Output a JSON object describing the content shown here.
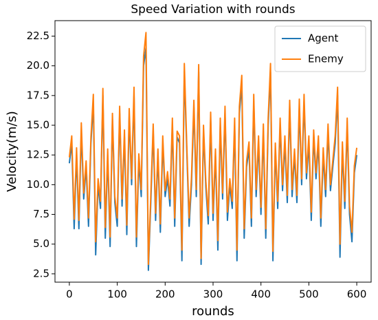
{
  "chart_data": {
    "type": "line",
    "title": "Speed Variation with rounds",
    "x_label": "rounds",
    "y_label": "Velocity(m/s)",
    "x": [
      0,
      5,
      10,
      15,
      20,
      25,
      30,
      35,
      40,
      45,
      50,
      55,
      60,
      65,
      70,
      75,
      80,
      85,
      90,
      95,
      100,
      105,
      110,
      115,
      120,
      125,
      130,
      135,
      140,
      145,
      150,
      155,
      160,
      165,
      170,
      175,
      180,
      185,
      190,
      195,
      200,
      205,
      210,
      215,
      220,
      225,
      230,
      235,
      240,
      245,
      250,
      255,
      260,
      265,
      270,
      275,
      280,
      285,
      290,
      295,
      300,
      305,
      310,
      315,
      320,
      325,
      330,
      335,
      340,
      345,
      350,
      355,
      360,
      365,
      370,
      375,
      380,
      385,
      390,
      395,
      400,
      405,
      410,
      415,
      420,
      425,
      430,
      435,
      440,
      445,
      450,
      455,
      460,
      465,
      470,
      475,
      480,
      485,
      490,
      495,
      500,
      505,
      510,
      515,
      520,
      525,
      530,
      535,
      540,
      545,
      550,
      555,
      560,
      565,
      570,
      575,
      580,
      585,
      590,
      595,
      600
    ],
    "series": [
      {
        "name": "Agent",
        "color": "#1f77b4",
        "values": [
          11.8,
          13.5,
          6.3,
          12.5,
          6.3,
          14.5,
          8.8,
          11.5,
          6.5,
          13.5,
          16.8,
          4.1,
          10,
          8,
          17.5,
          5.5,
          12.5,
          4.8,
          15.5,
          8.5,
          6.5,
          16,
          8.2,
          14,
          5.8,
          15.8,
          10,
          17.5,
          4.8,
          12,
          9,
          20,
          21.5,
          2.8,
          8.5,
          14.5,
          7,
          12.5,
          6,
          13.5,
          9,
          10.5,
          8.2,
          15,
          6.5,
          14,
          13.5,
          3.6,
          19.5,
          13,
          6.5,
          10,
          16.5,
          9,
          19.5,
          3.3,
          14.5,
          9.8,
          6.7,
          15.5,
          7,
          12.5,
          4.5,
          15,
          8.8,
          16,
          7,
          10,
          8,
          15,
          3.6,
          16,
          18.5,
          5.5,
          11.5,
          13,
          6.5,
          17,
          9,
          13.5,
          7.5,
          14.5,
          5.5,
          15,
          19.5,
          3.6,
          13,
          8,
          15,
          9.5,
          13.5,
          8.5,
          16.5,
          9,
          12.5,
          8.5,
          16.5,
          10,
          17,
          10.5,
          13.5,
          7,
          14,
          10.5,
          13.5,
          6.5,
          12.5,
          9,
          14.5,
          9.5,
          11.5,
          13.5,
          17.5,
          3.9,
          13,
          8,
          15,
          7.5,
          5.2,
          11,
          12.5
        ]
      },
      {
        "name": "Enemy",
        "color": "#ff7f0e",
        "values": [
          12.3,
          14.1,
          7.1,
          13.1,
          7,
          15.2,
          9.3,
          12,
          7.2,
          14,
          17.6,
          5.2,
          10.5,
          8.6,
          18.1,
          6.4,
          13,
          5.6,
          16,
          9,
          7.2,
          16.6,
          8.8,
          14.6,
          6.6,
          16.4,
          10.5,
          18.2,
          5.6,
          12.6,
          9.6,
          20.8,
          22.8,
          3.3,
          9.1,
          15.1,
          7.6,
          13,
          6.7,
          14.1,
          9.5,
          11.1,
          8.8,
          15.6,
          7.2,
          14.5,
          14.1,
          4.5,
          20.2,
          13.5,
          7.2,
          10.6,
          17.1,
          9.6,
          20.1,
          3.8,
          15,
          10.3,
          7.4,
          16.1,
          7.6,
          13,
          5.3,
          15.6,
          9.3,
          16.6,
          7.7,
          10.5,
          8.6,
          15.6,
          4.5,
          16.6,
          19.2,
          6.3,
          12,
          13.6,
          7.2,
          17.6,
          9.6,
          14.1,
          8.1,
          15.1,
          6.3,
          15.6,
          20.2,
          4.4,
          13.5,
          8.6,
          15.6,
          10,
          14.1,
          9.1,
          17.1,
          9.6,
          13,
          9.1,
          17.2,
          10.5,
          17.6,
          11,
          14.1,
          7.7,
          14.6,
          11,
          14.1,
          7.2,
          13.1,
          9.6,
          15.1,
          10,
          12,
          14.1,
          18.2,
          5,
          13.6,
          8.6,
          15.6,
          8.2,
          6,
          11.6,
          13.1
        ]
      }
    ],
    "xlim": [
      -30,
      630
    ],
    "ylim": [
      1.8,
      23.8
    ],
    "xticks": [
      0,
      100,
      200,
      300,
      400,
      500,
      600
    ],
    "yticks": [
      2.5,
      {
        "value": 5,
        "label": "5.0"
      },
      7.5,
      {
        "value": 10,
        "label": "10.0"
      },
      12.5,
      {
        "value": 15,
        "label": "15.0"
      },
      17.5,
      {
        "value": 20,
        "label": "20.0"
      },
      22.5
    ],
    "legend": "upper right"
  }
}
